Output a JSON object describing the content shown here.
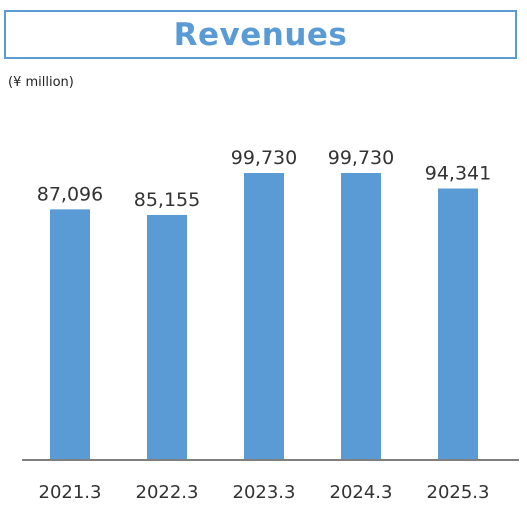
{
  "header": {
    "title": "Revenues",
    "unit": "(¥ million)"
  },
  "colors": {
    "bar": "#5b9bd5",
    "title": "#5b9bd5",
    "axis": "#7f7f7f",
    "text": "#333333"
  },
  "chart_data": {
    "type": "bar",
    "title": "Revenues",
    "categories": [
      "2021.3",
      "2022.3",
      "2023.3",
      "2024.3",
      "2025.3"
    ],
    "values": [
      87096,
      85155,
      99730,
      99730,
      94341
    ],
    "value_labels": [
      "87,096",
      "85,155",
      "99,730",
      "99,730",
      "94,341"
    ],
    "xlabel": "",
    "ylabel": "(¥ million)",
    "ylim": [
      0,
      100000
    ],
    "grid": false,
    "legend": "none"
  }
}
